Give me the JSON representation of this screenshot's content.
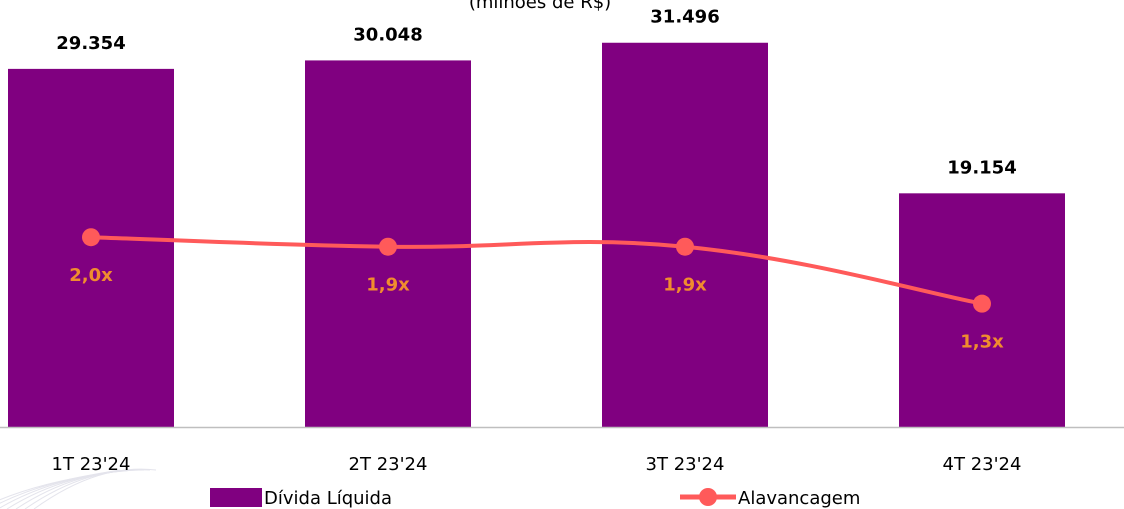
{
  "chart_data": {
    "type": "bar",
    "subtitle": "(milhões de R$)",
    "categories": [
      "1T 23'24",
      "2T 23'24",
      "3T 23'24",
      "4T 23'24"
    ],
    "series": [
      {
        "name": "Dívida Líquida",
        "kind": "bar",
        "values": [
          29354,
          30048,
          31496,
          19154
        ],
        "labels": [
          "29.354",
          "30.048",
          "31.496",
          "19.154"
        ],
        "color": "#800080"
      },
      {
        "name": "Alavancagem",
        "kind": "line",
        "axis": "secondary",
        "values": [
          2.0,
          1.9,
          1.9,
          1.3
        ],
        "labels": [
          "2,0x",
          "1,9x",
          "1,9x",
          "1,3x"
        ],
        "color": "#FF5A5A",
        "label_color": "#F08C2E"
      }
    ],
    "ylim": [
      0,
      35000
    ],
    "y2lim": [
      0,
      4.5
    ],
    "grid": false,
    "legend": "bottom"
  }
}
